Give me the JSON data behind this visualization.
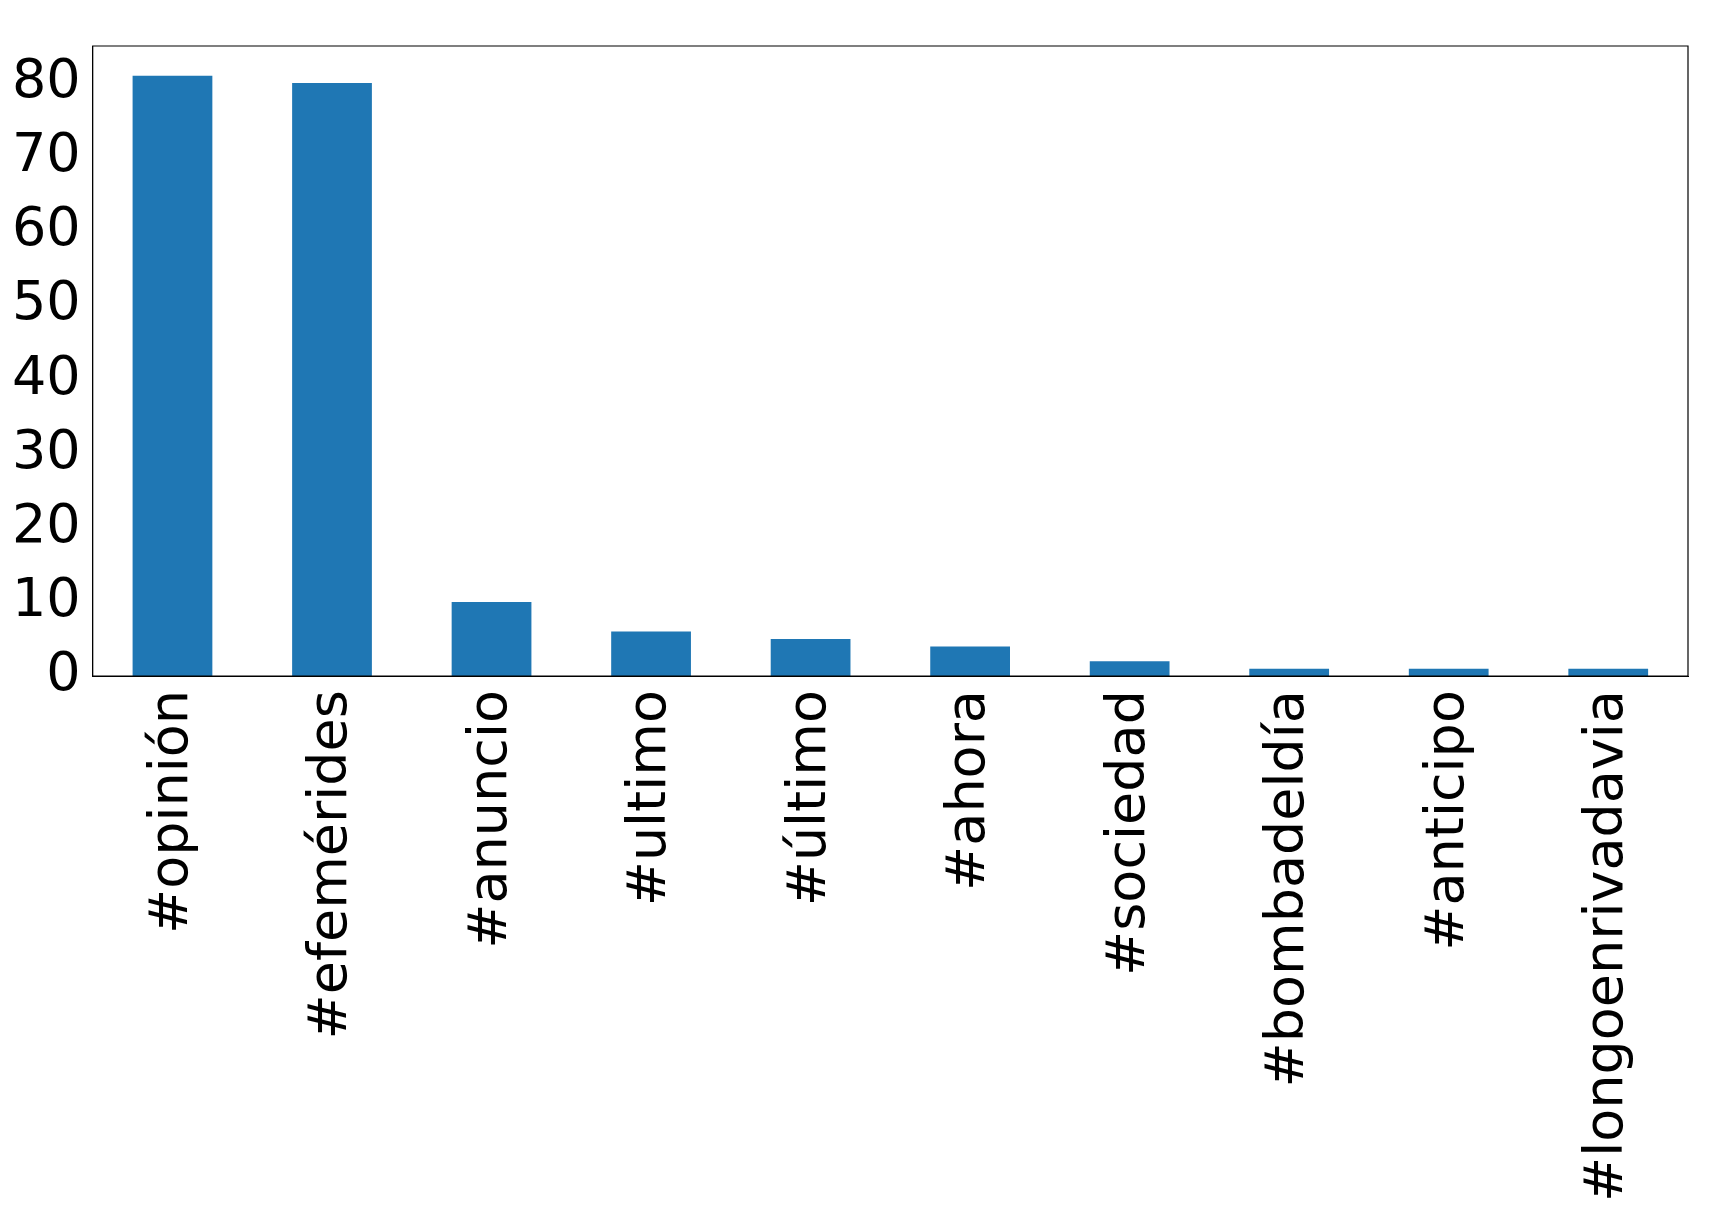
{
  "chart_data": {
    "type": "bar",
    "categories": [
      "#opinión",
      "#efemérides",
      "#anuncio",
      "#ultimo",
      "#último",
      "#ahora",
      "#sociedad",
      "#bombadeldía",
      "#anticipo",
      "#longoenrivadavia"
    ],
    "values": [
      81,
      80,
      10,
      6,
      5,
      4,
      2,
      1,
      1,
      1
    ],
    "color": "#1f77b4",
    "ylim": [
      0,
      85
    ],
    "yticks": [
      0,
      10,
      20,
      30,
      40,
      50,
      60,
      70,
      80
    ],
    "grid": false,
    "legend": false
  }
}
